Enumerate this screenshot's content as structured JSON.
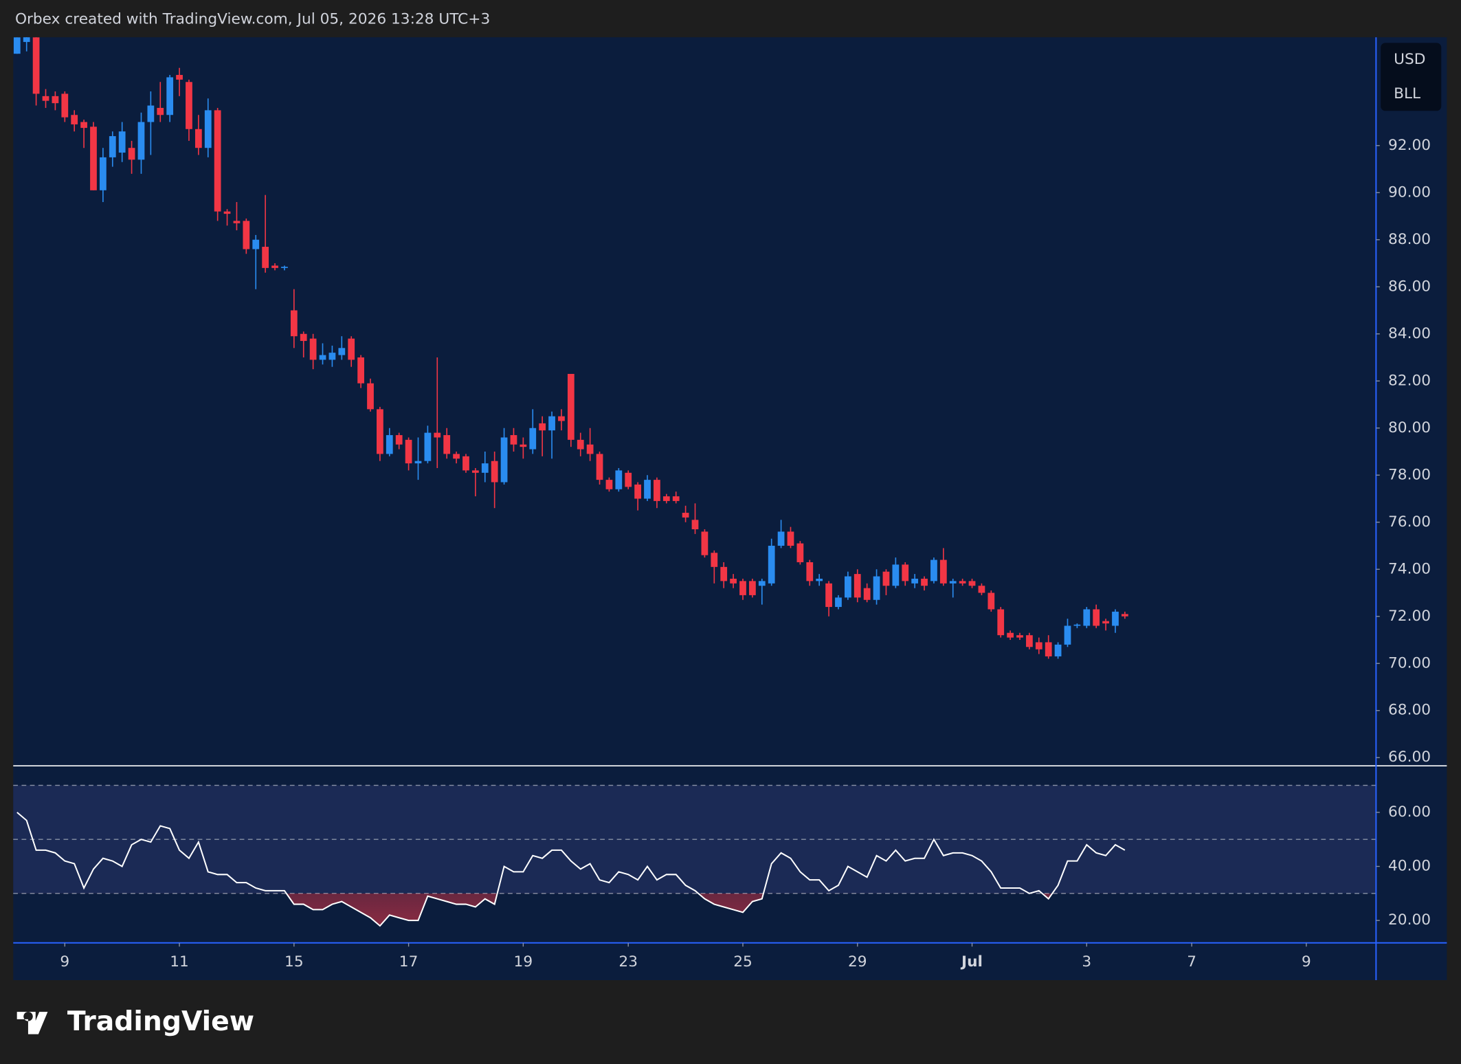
{
  "header": "Orbex created with TradingView.com, Jul 05, 2026 13:28 UTC+3",
  "unit_badge": [
    "USD",
    "BLL"
  ],
  "footer_logo": "TradingView",
  "chart_data": [
    {
      "type": "candlestick",
      "up_color": "#2a8cf0",
      "down_color": "#f23645",
      "xlim": [
        -0.4,
        142.3
      ],
      "xticks": [
        {
          "value": 5,
          "label": "9"
        },
        {
          "value": 17,
          "label": "11"
        },
        {
          "value": 29,
          "label": "15"
        },
        {
          "value": 41,
          "label": "17"
        },
        {
          "value": 53,
          "label": "19"
        },
        {
          "value": 64,
          "label": "23"
        },
        {
          "value": 76,
          "label": "25"
        },
        {
          "value": 88,
          "label": "29"
        },
        {
          "value": 100,
          "label": "Jul"
        },
        {
          "value": 112,
          "label": "3"
        },
        {
          "value": 123,
          "label": "7"
        },
        {
          "value": 135,
          "label": "9"
        }
      ],
      "ylim": [
        65.65,
        96.6
      ],
      "yticks": [
        {
          "value": 66,
          "label": "66.00"
        },
        {
          "value": 68,
          "label": "68.00"
        },
        {
          "value": 70,
          "label": "70.00"
        },
        {
          "value": 72,
          "label": "72.00"
        },
        {
          "value": 74,
          "label": "74.00"
        },
        {
          "value": 76,
          "label": "76.00"
        },
        {
          "value": 78,
          "label": "78.00"
        },
        {
          "value": 80,
          "label": "80.00"
        },
        {
          "value": 82,
          "label": "82.00"
        },
        {
          "value": 84,
          "label": "84.00"
        },
        {
          "value": 86,
          "label": "86.00"
        },
        {
          "value": 88,
          "label": "88.00"
        },
        {
          "value": 90,
          "label": "90.00"
        },
        {
          "value": 92,
          "label": "92.00"
        }
      ],
      "open": [
        95.9,
        96.4,
        96.6,
        94.1,
        94.1,
        94.2,
        93.3,
        93.0,
        92.8,
        90.1,
        91.5,
        91.7,
        91.9,
        91.4,
        93.0,
        93.6,
        93.3,
        95.0,
        94.7,
        92.7,
        91.9,
        93.5,
        89.2,
        88.8,
        88.8,
        87.6,
        87.7,
        86.9,
        86.8,
        85.0,
        84.0,
        83.8,
        82.9,
        82.9,
        83.1,
        83.8,
        83.0,
        81.9,
        80.8,
        78.9,
        79.7,
        79.5,
        78.5,
        78.6,
        79.8,
        79.7,
        78.9,
        78.8,
        78.2,
        78.1,
        78.6,
        77.7,
        79.7,
        79.3,
        79.1,
        80.2,
        79.9,
        80.5,
        82.3,
        79.5,
        79.3,
        78.9,
        77.8,
        77.4,
        78.1,
        77.6,
        77.0,
        77.8,
        77.1,
        77.1,
        76.4,
        76.1,
        75.6,
        74.7,
        74.1,
        73.6,
        73.5,
        73.5,
        73.3,
        73.4,
        75.0,
        75.6,
        75.1,
        74.3,
        73.5,
        73.4,
        72.4,
        72.8,
        73.8,
        73.2,
        72.7,
        73.9,
        73.3,
        74.2,
        73.4,
        73.6,
        73.5,
        74.4,
        73.4,
        73.5,
        73.5,
        73.3,
        73.0,
        72.3,
        71.3,
        71.2,
        71.2,
        70.9,
        70.9,
        70.3,
        70.8,
        71.6,
        71.6,
        72.3,
        71.8,
        71.6,
        72.1
      ],
      "high": [
        96.6,
        97.0,
        96.8,
        94.4,
        94.3,
        94.3,
        93.5,
        93.1,
        93.0,
        91.9,
        92.6,
        93.0,
        92.2,
        93.4,
        94.3,
        94.7,
        95.0,
        95.3,
        94.8,
        93.3,
        94.0,
        93.6,
        89.3,
        89.6,
        88.9,
        88.2,
        89.9,
        87.0,
        86.9,
        85.9,
        84.1,
        84.0,
        83.6,
        83.5,
        83.9,
        83.9,
        83.1,
        82.1,
        80.9,
        80.0,
        79.8,
        79.6,
        79.6,
        80.1,
        83.0,
        80.0,
        79.0,
        78.9,
        78.3,
        79.0,
        79.0,
        80.0,
        80.0,
        79.6,
        80.8,
        80.5,
        80.7,
        80.8,
        82.3,
        79.8,
        80.0,
        79.0,
        77.9,
        78.3,
        78.2,
        77.7,
        78.0,
        77.9,
        77.2,
        77.3,
        76.7,
        76.8,
        75.7,
        74.8,
        74.3,
        73.8,
        73.6,
        73.6,
        73.6,
        75.3,
        76.1,
        75.8,
        75.2,
        74.4,
        73.8,
        73.5,
        72.9,
        73.9,
        74.0,
        73.4,
        74.0,
        74.0,
        74.5,
        74.3,
        73.8,
        73.7,
        74.5,
        74.9,
        73.6,
        73.6,
        73.6,
        73.4,
        73.1,
        72.4,
        71.4,
        71.3,
        71.3,
        71.1,
        71.2,
        70.9,
        71.9,
        71.7,
        72.4,
        72.5,
        71.9,
        72.3,
        72.2
      ],
      "low": [
        95.9,
        96.0,
        93.7,
        93.6,
        93.5,
        93.0,
        92.6,
        91.9,
        90.1,
        89.6,
        91.1,
        91.3,
        90.8,
        90.8,
        91.6,
        93.0,
        93.0,
        94.1,
        92.2,
        91.6,
        91.5,
        88.8,
        88.6,
        88.4,
        87.4,
        85.9,
        86.6,
        86.7,
        86.7,
        83.4,
        83.0,
        82.5,
        82.7,
        82.6,
        82.9,
        82.6,
        81.7,
        80.7,
        78.6,
        78.8,
        79.1,
        78.2,
        77.8,
        78.5,
        78.3,
        78.7,
        78.5,
        78.1,
        77.1,
        77.7,
        76.6,
        77.6,
        79.0,
        78.7,
        78.9,
        78.8,
        78.7,
        79.9,
        79.2,
        78.8,
        78.6,
        77.6,
        77.3,
        77.3,
        77.4,
        76.5,
        76.9,
        76.6,
        76.8,
        76.8,
        76.0,
        75.5,
        74.5,
        73.4,
        73.2,
        73.2,
        72.7,
        72.8,
        72.5,
        73.3,
        74.9,
        74.9,
        74.2,
        73.3,
        73.3,
        72.0,
        72.3,
        72.7,
        72.6,
        72.6,
        72.5,
        72.9,
        73.2,
        73.3,
        73.2,
        73.1,
        73.4,
        73.3,
        72.8,
        73.3,
        73.2,
        72.9,
        72.2,
        71.1,
        71.0,
        71.0,
        70.6,
        70.4,
        70.2,
        70.2,
        70.7,
        71.5,
        71.5,
        71.5,
        71.4,
        71.3,
        71.9
      ],
      "close": [
        96.6,
        96.7,
        94.2,
        93.9,
        93.8,
        93.2,
        92.9,
        92.75,
        90.1,
        91.5,
        92.4,
        92.6,
        91.4,
        93.0,
        93.7,
        93.3,
        94.9,
        94.8,
        92.7,
        91.9,
        93.5,
        89.2,
        89.1,
        88.7,
        87.6,
        88.0,
        86.8,
        86.8,
        86.85,
        83.9,
        83.7,
        82.9,
        83.1,
        83.2,
        83.4,
        82.9,
        81.9,
        80.8,
        78.9,
        79.7,
        79.3,
        78.5,
        78.6,
        79.8,
        79.6,
        78.9,
        78.7,
        78.2,
        78.1,
        78.5,
        77.7,
        79.6,
        79.3,
        79.2,
        80.0,
        79.9,
        80.5,
        80.3,
        79.5,
        79.1,
        78.9,
        77.8,
        77.4,
        78.2,
        77.5,
        77.0,
        77.8,
        76.9,
        76.9,
        76.9,
        76.2,
        75.7,
        74.6,
        74.1,
        73.5,
        73.4,
        72.9,
        72.9,
        73.5,
        75.0,
        75.6,
        75.0,
        74.3,
        73.5,
        73.6,
        72.4,
        72.8,
        73.7,
        72.8,
        72.7,
        73.7,
        73.3,
        74.2,
        73.5,
        73.6,
        73.3,
        74.4,
        73.4,
        73.5,
        73.4,
        73.3,
        73.0,
        72.3,
        71.2,
        71.1,
        71.1,
        70.7,
        70.6,
        70.3,
        70.8,
        71.6,
        71.65,
        72.3,
        71.6,
        71.7,
        72.2,
        72.0
      ]
    },
    {
      "type": "line",
      "color": "#ffffff",
      "band_color": "#1b2a55",
      "oversold_color": "#f23645",
      "levels": [
        30,
        50,
        70
      ],
      "ylim": [
        11.7,
        77.2
      ],
      "yticks": [
        {
          "value": 20,
          "label": "20.00"
        },
        {
          "value": 40,
          "label": "40.00"
        },
        {
          "value": 60,
          "label": "60.00"
        }
      ],
      "values": [
        60,
        57,
        46,
        46,
        45,
        42,
        41,
        32,
        39,
        43,
        42,
        40,
        48,
        50,
        49,
        55,
        54,
        46,
        43,
        49,
        38,
        37,
        37,
        34,
        34,
        32,
        31,
        31,
        31,
        26,
        26,
        24,
        24,
        26,
        27,
        25,
        23,
        21,
        18,
        22,
        21,
        20,
        20,
        29,
        28,
        27,
        26,
        26,
        25,
        28,
        26,
        40,
        38,
        38,
        44,
        43,
        46,
        46,
        42,
        39,
        41,
        35,
        34,
        38,
        37,
        35,
        40,
        35,
        37,
        37,
        33,
        31,
        28,
        26,
        25,
        24,
        23,
        27,
        28,
        41,
        45,
        43,
        38,
        35,
        35,
        31,
        33,
        40,
        38,
        36,
        44,
        42,
        46,
        42,
        43,
        43,
        50,
        44,
        45,
        45,
        44,
        42,
        38,
        32,
        32,
        32,
        30,
        31,
        28,
        33,
        42,
        42,
        48,
        45,
        44,
        48,
        46
      ]
    }
  ]
}
